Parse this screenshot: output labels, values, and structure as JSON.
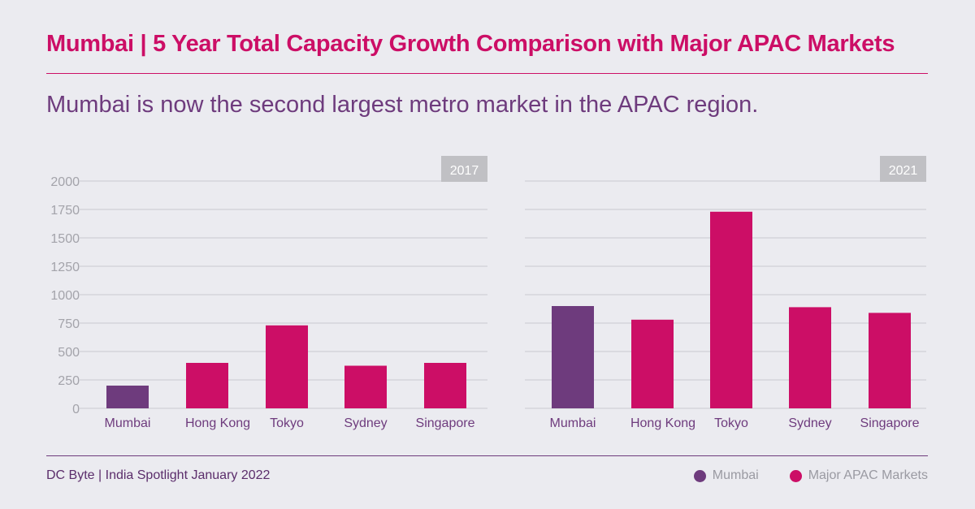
{
  "title": "Mumbai | 5 Year Total Capacity Growth Comparison with Major APAC Markets",
  "subtitle": "Mumbai is now the second largest metro market in the APAC region.",
  "source": "DC Byte | India Spotlight January 2022",
  "legend": [
    {
      "label": "Mumbai",
      "color": "#6e3b7d"
    },
    {
      "label": "Major APAC Markets",
      "color": "#cc0e66"
    }
  ],
  "chart_data": [
    {
      "type": "bar",
      "title": "2017",
      "categories": [
        "Mumbai",
        "Hong Kong",
        "Tokyo",
        "Sydney",
        "Singapore"
      ],
      "values": [
        200,
        400,
        730,
        375,
        400
      ],
      "colors": [
        "#6e3b7d",
        "#cc0e66",
        "#cc0e66",
        "#cc0e66",
        "#cc0e66"
      ],
      "ylim": [
        0,
        2000
      ],
      "yticks": [
        0,
        250,
        500,
        750,
        1000,
        1250,
        1500,
        1750,
        2000
      ],
      "grid": true
    },
    {
      "type": "bar",
      "title": "2021",
      "categories": [
        "Mumbai",
        "Hong Kong",
        "Tokyo",
        "Sydney",
        "Singapore"
      ],
      "values": [
        900,
        780,
        1730,
        890,
        840
      ],
      "colors": [
        "#6e3b7d",
        "#cc0e66",
        "#cc0e66",
        "#cc0e66",
        "#cc0e66"
      ],
      "ylim": [
        0,
        2000
      ],
      "yticks": [
        0,
        250,
        500,
        750,
        1000,
        1250,
        1500,
        1750,
        2000
      ],
      "grid": true
    }
  ]
}
